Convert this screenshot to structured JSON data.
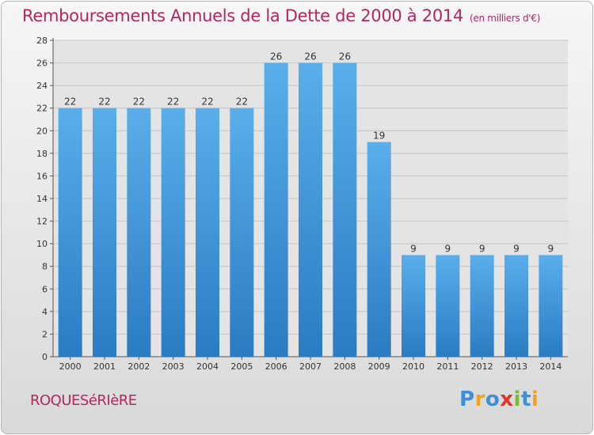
{
  "chart_data": {
    "type": "bar",
    "title": "Remboursements Annuels de la Dette de 2000 à 2014",
    "subtitle": "(en milliers d'€)",
    "categories": [
      "2000",
      "2001",
      "2002",
      "2003",
      "2004",
      "2005",
      "2006",
      "2007",
      "2008",
      "2009",
      "2010",
      "2011",
      "2012",
      "2013",
      "2014"
    ],
    "values": [
      22,
      22,
      22,
      22,
      22,
      22,
      26,
      26,
      26,
      19,
      9,
      9,
      9,
      9,
      9
    ],
    "ylim": [
      0,
      28
    ],
    "yticks": [
      0,
      2,
      4,
      6,
      8,
      10,
      12,
      14,
      16,
      18,
      20,
      22,
      24,
      26,
      28
    ],
    "xlabel": "",
    "ylabel": "",
    "grid": true,
    "bar_color": "#4d9ee0"
  },
  "footer": {
    "commune": "ROQUESéRIèRE",
    "logo_letters": [
      {
        "char": "P",
        "color": "#3f8fd6"
      },
      {
        "char": "r",
        "color": "#f2a21c"
      },
      {
        "char": "o",
        "color": "#3f8fd6"
      },
      {
        "char": "x",
        "color": "#e2342d"
      },
      {
        "char": "i",
        "color": "#7cbb2f"
      },
      {
        "char": "t",
        "color": "#3f8fd6"
      },
      {
        "char": "i",
        "color": "#f2a21c"
      }
    ]
  }
}
